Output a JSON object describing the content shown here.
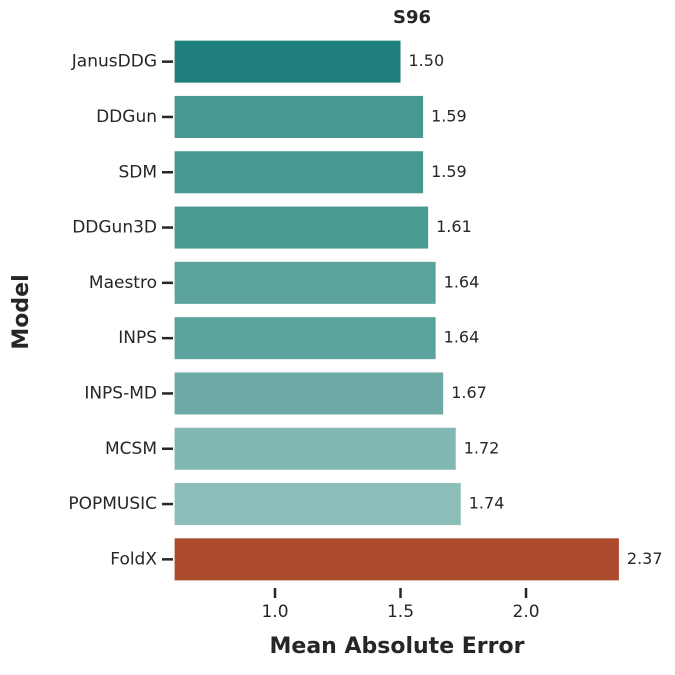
{
  "chart_data": {
    "type": "bar",
    "orientation": "horizontal",
    "title": "S96",
    "x_label": "Mean Absolute Error",
    "y_label": "Model",
    "categories": [
      "JanusDDG",
      "DDGun",
      "SDM",
      "DDGun3D",
      "Maestro",
      "INPS",
      "INPS-MD",
      "MCSM",
      "POPMUSIC",
      "FoldX"
    ],
    "values": [
      1.5,
      1.59,
      1.59,
      1.61,
      1.64,
      1.64,
      1.67,
      1.72,
      1.74,
      2.37
    ],
    "value_labels": [
      "1.50",
      "1.59",
      "1.59",
      "1.61",
      "1.64",
      "1.64",
      "1.67",
      "1.72",
      "1.74",
      "2.37"
    ],
    "colors": [
      "#1f7f7c",
      "#469892",
      "#469892",
      "#4b9b95",
      "#5ca39e",
      "#5ca39e",
      "#6daaa6",
      "#82b8b4",
      "#8cbdb9",
      "#ad4b2d"
    ],
    "xlim": [
      0.6,
      2.37
    ],
    "xticks": [
      {
        "value": 1,
        "label": "1.0"
      },
      {
        "value": 1.5,
        "label": "1.5"
      },
      {
        "value": 2,
        "label": "2.0"
      }
    ]
  }
}
